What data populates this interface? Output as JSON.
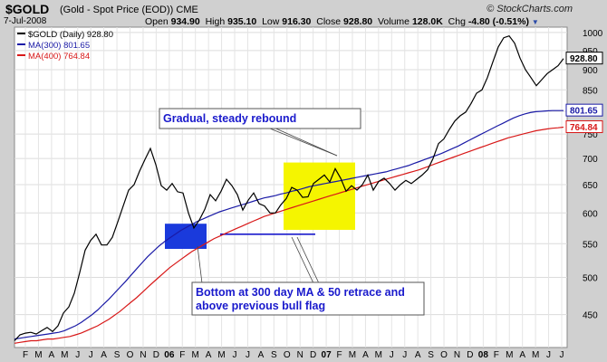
{
  "header": {
    "symbol": "$GOLD",
    "description": "(Gold - Spot Price (EOD))",
    "exchange": "CME",
    "date": "7-Jul-2008",
    "brand": "© StockCharts.com",
    "open_label": "Open",
    "open": "934.90",
    "high_label": "High",
    "high": "935.10",
    "low_label": "Low",
    "low": "916.30",
    "close_label": "Close",
    "close": "928.80",
    "volume_label": "Volume",
    "volume": "128.0K",
    "chg_label": "Chg",
    "chg": "-4.80 (-0.51%)",
    "caret": "▼"
  },
  "colors": {
    "price": "#000000",
    "ma300": "#1a1aa6",
    "ma400": "#d81818",
    "callout_text": "#1a1acc",
    "highlight_yellow": "#f5f500",
    "highlight_blue": "#1a3adc"
  },
  "chart_data": {
    "type": "line",
    "legend": {
      "placement": "top-left",
      "entries": [
        {
          "label": "$GOLD (Daily) 928.80",
          "color": "#000000"
        },
        {
          "label": "MA(300) 801.65",
          "color": "#1a1aa6"
        },
        {
          "label": "MA(400) 764.84",
          "color": "#d81818"
        }
      ]
    },
    "y_axis": {
      "scale": "log",
      "ylim": [
        410,
        1015
      ],
      "ticks": [
        "450",
        "500",
        "550",
        "600",
        "650",
        "700",
        "750",
        "800",
        "850",
        "900",
        "950",
        "1000"
      ]
    },
    "x_axis": {
      "months": [
        "F",
        "M",
        "A",
        "M",
        "J",
        "J",
        "A",
        "S",
        "O",
        "N",
        "D",
        "06",
        "F",
        "M",
        "A",
        "M",
        "J",
        "J",
        "A",
        "S",
        "O",
        "N",
        "D",
        "07",
        "F",
        "M",
        "A",
        "M",
        "J",
        "J",
        "A",
        "S",
        "O",
        "N",
        "D",
        "08",
        "F",
        "M",
        "A",
        "M",
        "J",
        "J"
      ]
    },
    "series": [
      {
        "name": "$GOLD (Daily)",
        "values": [
          418,
          425,
          427,
          428,
          426,
          430,
          434,
          429,
          436,
          452,
          460,
          478,
          507,
          540,
          555,
          565,
          548,
          548,
          560,
          585,
          612,
          640,
          650,
          675,
          698,
          720,
          688,
          648,
          640,
          652,
          637,
          635,
          600,
          575,
          588,
          606,
          632,
          621,
          638,
          660,
          648,
          632,
          605,
          622,
          635,
          616,
          612,
          600,
          600,
          614,
          625,
          645,
          640,
          627,
          628,
          652,
          660,
          668,
          655,
          680,
          662,
          638,
          648,
          640,
          650,
          668,
          640,
          656,
          662,
          652,
          640,
          650,
          658,
          652,
          660,
          668,
          678,
          700,
          730,
          740,
          760,
          778,
          790,
          798,
          818,
          842,
          850,
          880,
          920,
          960,
          985,
          990,
          970,
          930,
          900,
          880,
          860,
          875,
          890,
          900,
          910,
          928.8
        ]
      },
      {
        "name": "MA(300)",
        "values": [
          420,
          421,
          422,
          423,
          424,
          425,
          426,
          427,
          428,
          430,
          433,
          436,
          440,
          445,
          450,
          456,
          463,
          470,
          478,
          486,
          494,
          503,
          512,
          521,
          530,
          538,
          546,
          553,
          559,
          565,
          571,
          576,
          581,
          586,
          590,
          594,
          598,
          602,
          605,
          608,
          611,
          614,
          617,
          620,
          623,
          626,
          628,
          630,
          633,
          635,
          638,
          640,
          643,
          646,
          648,
          650,
          652,
          654,
          656,
          658,
          660,
          662,
          664,
          666,
          668,
          670,
          672,
          674,
          677,
          680,
          683,
          686,
          690,
          694,
          698,
          702,
          706,
          710,
          715,
          720,
          725,
          731,
          737,
          743,
          749,
          755,
          761,
          767,
          773,
          779,
          785,
          790,
          794,
          797,
          799,
          800,
          801,
          801.5,
          801.6,
          801.65
        ]
      },
      {
        "name": "MA(400)",
        "values": [
          415,
          416,
          417,
          418,
          418,
          419,
          420,
          420,
          421,
          422,
          423,
          425,
          427,
          430,
          433,
          436,
          440,
          444,
          449,
          454,
          460,
          466,
          472,
          479,
          486,
          493,
          500,
          507,
          514,
          520,
          526,
          532,
          538,
          543,
          548,
          553,
          558,
          562,
          566,
          570,
          574,
          578,
          582,
          586,
          590,
          594,
          597,
          600,
          603,
          606,
          609,
          612,
          615,
          618,
          621,
          624,
          627,
          630,
          633,
          636,
          639,
          642,
          645,
          648,
          651,
          654,
          657,
          660,
          663,
          666,
          669,
          672,
          675,
          678,
          682,
          686,
          690,
          694,
          698,
          702,
          706,
          710,
          714,
          718,
          722,
          726,
          730,
          734,
          738,
          742,
          745,
          748,
          751,
          754,
          757,
          759,
          761,
          762.5,
          763.5,
          764.84
        ]
      }
    ],
    "price_label": "928.80",
    "ma300_label": "801.65",
    "ma400_label": "764.84",
    "annotations": [
      {
        "text": "Gradual, steady rebound",
        "target": "Oct 2006 – Mar 2007 rise"
      },
      {
        "text": "Bottom at 300 day MA & 50 retrace and above previous bull flag",
        "target": "Jun–Oct 2006 bottom near 565"
      }
    ],
    "highlights": [
      {
        "label": "bull flag",
        "range": "Feb 2006 – Mar 2006",
        "color": "#1a3adc"
      },
      {
        "label": "rebound",
        "range": "Oct 2006 – Mar 2007",
        "color": "#f5f500"
      }
    ],
    "support_line": 565
  }
}
